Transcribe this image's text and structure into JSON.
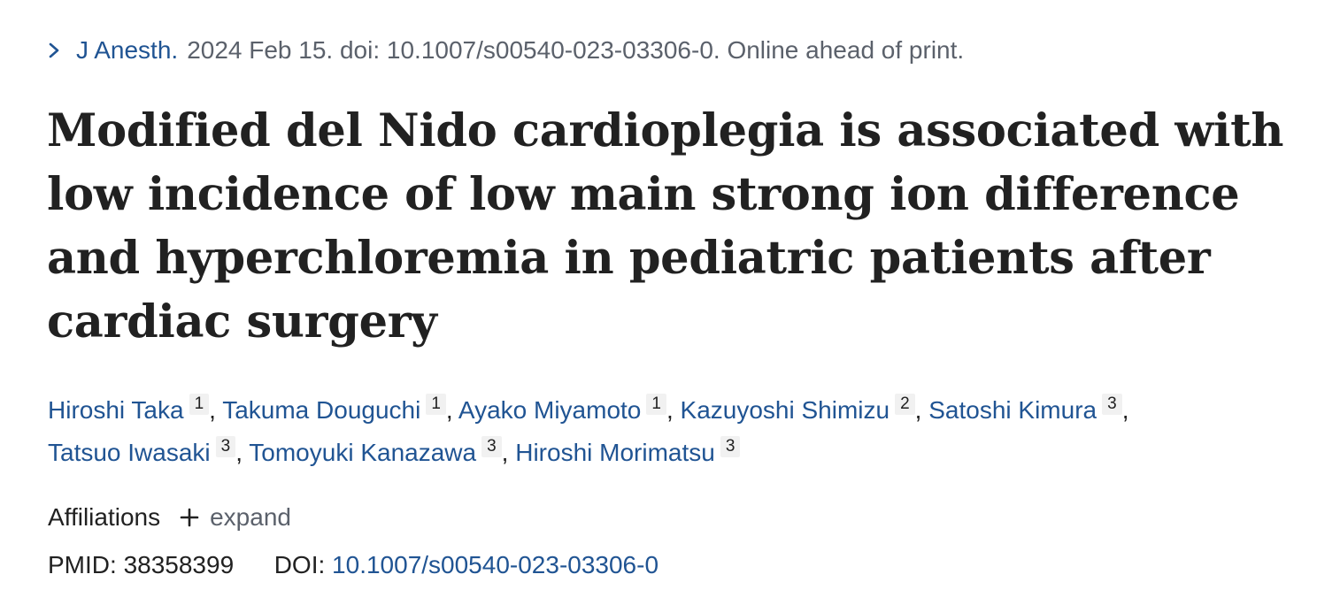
{
  "citation": {
    "journal": "J Anesth.",
    "details": "2024 Feb 15. doi: 10.1007/s00540-023-03306-0. Online ahead of print."
  },
  "title": "Modified del Nido cardioplegia is associated with low incidence of low main strong ion difference and hyperchloremia in pediatric patients after cardiac surgery",
  "authors": [
    {
      "name": "Hiroshi Taka",
      "aff": "1"
    },
    {
      "name": "Takuma Douguchi",
      "aff": "1"
    },
    {
      "name": "Ayako Miyamoto",
      "aff": "1"
    },
    {
      "name": "Kazuyoshi Shimizu",
      "aff": "2"
    },
    {
      "name": "Satoshi Kimura",
      "aff": "3"
    },
    {
      "name": "Tatsuo Iwasaki",
      "aff": "3"
    },
    {
      "name": "Tomoyuki Kanazawa",
      "aff": "3"
    },
    {
      "name": "Hiroshi Morimatsu",
      "aff": "3"
    }
  ],
  "author_separator": ",",
  "affiliations": {
    "label": "Affiliations",
    "expand_label": "expand"
  },
  "identifiers": {
    "pmid_label": "PMID:",
    "pmid": "38358399",
    "doi_label": "DOI:",
    "doi": "10.1007/s00540-023-03306-0"
  },
  "icons": {
    "journal_chevron": "chevron-right-icon",
    "expand": "plus-icon"
  },
  "colors": {
    "link": "#205493",
    "muted": "#5b616b",
    "text": "#212121",
    "badge_bg": "#f1f1f1"
  }
}
